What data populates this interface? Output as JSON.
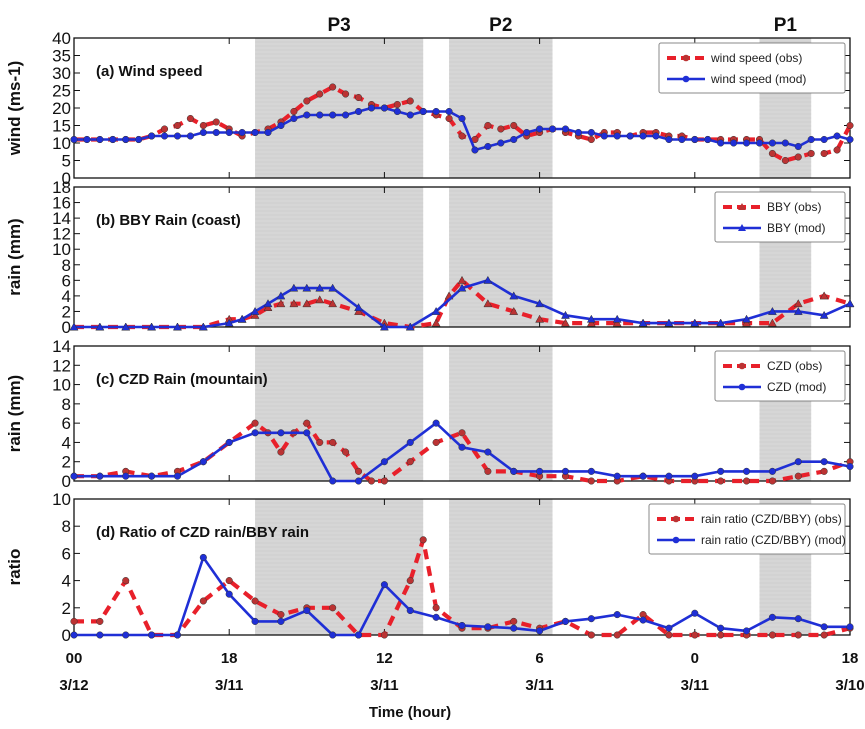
{
  "periods": [
    {
      "label": "P3",
      "start": 14,
      "end": 27
    },
    {
      "label": "P2",
      "start": 29,
      "end": 37
    },
    {
      "label": "P1",
      "start": 53,
      "end": 57
    }
  ],
  "x_axis": {
    "label": "Time (hour)",
    "range": [
      0,
      60
    ],
    "ticks": [
      {
        "x": 0,
        "hour": "00",
        "date": "3/12"
      },
      {
        "x": 12,
        "hour": "18",
        "date": "3/11"
      },
      {
        "x": 24,
        "hour": "12",
        "date": "3/11"
      },
      {
        "x": 36,
        "hour": "6",
        "date": "3/11"
      },
      {
        "x": 48,
        "hour": "0",
        "date": "3/11"
      },
      {
        "x": 60,
        "hour": "18",
        "date": "3/10"
      }
    ]
  },
  "colors": {
    "obs": "#e8202a",
    "mod": "#1f2fd6",
    "shade": "#d6d6d6"
  },
  "chart_data": [
    {
      "type": "line",
      "title": "(a) Wind speed",
      "ylabel": "wind (ms-1)",
      "ylim": [
        0,
        40
      ],
      "yticks": [
        0,
        5,
        10,
        15,
        20,
        25,
        30,
        35,
        40
      ],
      "series": [
        {
          "name": "wind speed (obs)",
          "style": "obs",
          "marker": "circle",
          "x": [
            0,
            1,
            2,
            3,
            4,
            5,
            6,
            7,
            8,
            9,
            10,
            11,
            12,
            13,
            14,
            15,
            16,
            17,
            18,
            19,
            20,
            21,
            22,
            23,
            24,
            25,
            26,
            27,
            28,
            29,
            30,
            31,
            32,
            33,
            34,
            35,
            36,
            37,
            38,
            39,
            40,
            41,
            42,
            43,
            44,
            45,
            46,
            47,
            48,
            49,
            50,
            51,
            52,
            53,
            54,
            55,
            56,
            57,
            58,
            59,
            60
          ],
          "y": [
            11,
            11,
            11,
            11,
            11,
            11,
            12,
            14,
            15,
            17,
            15,
            16,
            14,
            12,
            13,
            14,
            16,
            19,
            22,
            24,
            26,
            24,
            23,
            21,
            20,
            21,
            22,
            19,
            18,
            17,
            12,
            11,
            15,
            14,
            15,
            12,
            13,
            14,
            13,
            12,
            11,
            13,
            13,
            12,
            13,
            13,
            12,
            12,
            11,
            11,
            11,
            11,
            11,
            11,
            7,
            5,
            6,
            7,
            7,
            8,
            15
          ]
        },
        {
          "name": "wind speed (mod)",
          "style": "mod",
          "marker": "circle",
          "x": [
            0,
            1,
            2,
            3,
            4,
            5,
            6,
            7,
            8,
            9,
            10,
            11,
            12,
            13,
            14,
            15,
            16,
            17,
            18,
            19,
            20,
            21,
            22,
            23,
            24,
            25,
            26,
            27,
            28,
            29,
            30,
            31,
            32,
            33,
            34,
            35,
            36,
            37,
            38,
            39,
            40,
            41,
            42,
            43,
            44,
            45,
            46,
            47,
            48,
            49,
            50,
            51,
            52,
            53,
            54,
            55,
            56,
            57,
            58,
            59,
            60
          ],
          "y": [
            11,
            11,
            11,
            11,
            11,
            11,
            12,
            12,
            12,
            12,
            13,
            13,
            13,
            13,
            13,
            13,
            15,
            17,
            18,
            18,
            18,
            18,
            19,
            20,
            20,
            19,
            18,
            19,
            19,
            19,
            17,
            8,
            9,
            10,
            11,
            13,
            14,
            14,
            14,
            13,
            13,
            12,
            12,
            12,
            12,
            12,
            11,
            11,
            11,
            11,
            10,
            10,
            10,
            10,
            10,
            10,
            9,
            11,
            11,
            12,
            11
          ]
        }
      ]
    },
    {
      "type": "line",
      "title": "(b) BBY Rain (coast)",
      "ylabel": "rain (mm)",
      "ylim": [
        0,
        18
      ],
      "yticks": [
        0,
        2,
        4,
        6,
        8,
        10,
        12,
        14,
        16,
        18
      ],
      "series": [
        {
          "name": "BBY (obs)",
          "style": "obs",
          "marker": "triangle",
          "x": [
            0,
            2,
            4,
            6,
            8,
            10,
            12,
            13,
            14,
            15,
            16,
            17,
            18,
            19,
            20,
            22,
            24,
            26,
            28,
            29,
            30,
            32,
            34,
            36,
            38,
            40,
            42,
            44,
            46,
            48,
            50,
            52,
            54,
            56,
            58,
            60
          ],
          "y": [
            0,
            0,
            0,
            0,
            0,
            0,
            1,
            1,
            1.5,
            2.5,
            3,
            3,
            3,
            3.5,
            3,
            2,
            0.5,
            0,
            0.5,
            4,
            6,
            3,
            2,
            1,
            0.5,
            0.5,
            0.5,
            0.5,
            0.5,
            0.5,
            0.5,
            0.5,
            0.5,
            3,
            4,
            3
          ]
        },
        {
          "name": "BBY (mod)",
          "style": "mod",
          "marker": "triangle",
          "x": [
            0,
            2,
            4,
            6,
            8,
            10,
            12,
            13,
            14,
            15,
            16,
            17,
            18,
            19,
            20,
            22,
            24,
            26,
            28,
            30,
            32,
            34,
            36,
            38,
            40,
            42,
            44,
            46,
            48,
            50,
            52,
            54,
            56,
            58,
            60
          ],
          "y": [
            0,
            0,
            0,
            0,
            0,
            0,
            0.5,
            1,
            2,
            3,
            4,
            5,
            5,
            5,
            5,
            2.5,
            0,
            0,
            2,
            5,
            6,
            4,
            3,
            1.5,
            1,
            1,
            0.5,
            0.5,
            0.5,
            0.5,
            1,
            2,
            2,
            1.5,
            3
          ]
        }
      ]
    },
    {
      "type": "line",
      "title": "(c) CZD Rain (mountain)",
      "ylabel": "rain (mm)",
      "ylim": [
        0,
        14
      ],
      "yticks": [
        0,
        2,
        4,
        6,
        8,
        10,
        12,
        14
      ],
      "series": [
        {
          "name": "CZD (obs)",
          "style": "obs",
          "marker": "circle",
          "x": [
            0,
            2,
            4,
            6,
            8,
            10,
            12,
            14,
            15,
            16,
            17,
            18,
            19,
            20,
            21,
            22,
            23,
            24,
            26,
            28,
            30,
            32,
            34,
            36,
            38,
            40,
            42,
            44,
            46,
            48,
            50,
            52,
            54,
            56,
            58,
            60
          ],
          "y": [
            0.5,
            0.5,
            1,
            0.5,
            1,
            2,
            4,
            6,
            5,
            3,
            5,
            6,
            4,
            4,
            3,
            1,
            0,
            0,
            2,
            4,
            5,
            1,
            1,
            0.5,
            0.5,
            0,
            0,
            0.5,
            0,
            0,
            0,
            0,
            0,
            0.5,
            1,
            2
          ]
        },
        {
          "name": "CZD (mod)",
          "style": "mod",
          "marker": "circle",
          "x": [
            0,
            2,
            4,
            6,
            8,
            10,
            12,
            14,
            16,
            18,
            20,
            22,
            24,
            26,
            28,
            30,
            32,
            34,
            36,
            38,
            40,
            42,
            44,
            46,
            48,
            50,
            52,
            54,
            56,
            58,
            60
          ],
          "y": [
            0.5,
            0.5,
            0.5,
            0.5,
            0.5,
            2,
            4,
            5,
            5,
            5,
            0,
            0,
            2,
            4,
            6,
            3.5,
            3,
            1,
            1,
            1,
            1,
            0.5,
            0.5,
            0.5,
            0.5,
            1,
            1,
            1,
            2,
            2,
            1.5
          ]
        }
      ]
    },
    {
      "type": "line",
      "title": "(d) Ratio of CZD rain/BBY rain",
      "ylabel": "ratio",
      "ylim": [
        0,
        10
      ],
      "yticks": [
        0,
        2,
        4,
        6,
        8,
        10
      ],
      "series": [
        {
          "name": "rain ratio (CZD/BBY) (obs)",
          "style": "obs",
          "marker": "circle",
          "x": [
            0,
            2,
            4,
            6,
            8,
            10,
            12,
            14,
            16,
            18,
            20,
            22,
            24,
            26,
            27,
            28,
            30,
            32,
            34,
            36,
            38,
            40,
            42,
            44,
            46,
            48,
            50,
            52,
            54,
            56,
            58,
            60
          ],
          "y": [
            1,
            1,
            4,
            0,
            0,
            2.5,
            4,
            2.5,
            1.5,
            2,
            2,
            0,
            0,
            4,
            7,
            2,
            0.5,
            0.5,
            1,
            0.5,
            1,
            0,
            0,
            1.5,
            0,
            0,
            0,
            0,
            0,
            0,
            0,
            0.5
          ]
        },
        {
          "name": "rain ratio (CZD/BBY) (mod)",
          "style": "mod",
          "marker": "circle",
          "x": [
            0,
            2,
            4,
            6,
            8,
            10,
            12,
            14,
            16,
            18,
            20,
            22,
            24,
            26,
            28,
            30,
            32,
            34,
            36,
            38,
            40,
            42,
            44,
            46,
            48,
            50,
            52,
            54,
            56,
            58,
            60
          ],
          "y": [
            0,
            0,
            0,
            0,
            0,
            5.7,
            3,
            1,
            1,
            1.8,
            0,
            0,
            3.7,
            1.8,
            1.3,
            0.7,
            0.6,
            0.5,
            0.3,
            1,
            1.2,
            1.5,
            1.1,
            0.5,
            1.6,
            0.5,
            0.3,
            1.3,
            1.2,
            0.6,
            0.6
          ]
        }
      ]
    }
  ]
}
